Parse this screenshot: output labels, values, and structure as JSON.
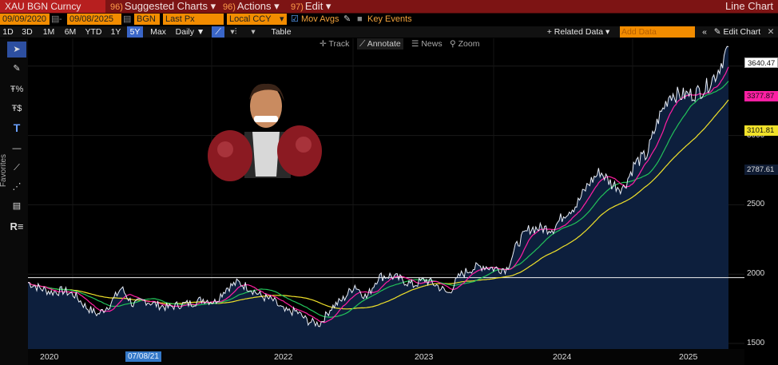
{
  "topbar": {
    "security": "XAU BGN Curncy",
    "menus": [
      {
        "num": "96)",
        "label": "Suggested Charts ▾"
      },
      {
        "num": "96)",
        "label": "Actions ▾"
      },
      {
        "num": "97)",
        "label": "Edit ▾"
      }
    ],
    "title": "Line Chart"
  },
  "params": {
    "start_date": "09/09/2020",
    "end_date": "09/08/2025",
    "source": "BGN",
    "field": "Last Px",
    "currency": "Local CCY",
    "mov_avgs": "Mov Avgs",
    "key_events": "Key Events"
  },
  "toolbar": {
    "ranges": [
      "1D",
      "3D",
      "1M",
      "6M",
      "YTD",
      "1Y",
      "5Y",
      "Max"
    ],
    "active_range": "5Y",
    "frequency": "Daily ▼",
    "table": "Table",
    "related": "+ Related Data ▾",
    "add_data_placeholder": "Add Data",
    "edit_chart": "✎ Edit Chart"
  },
  "annotations": {
    "track": "Track",
    "annotate": "Annotate",
    "news": "News",
    "zoom": "Zoom"
  },
  "sidebar": {
    "favorites": "Favorites"
  },
  "chart_data": {
    "type": "line",
    "x_axis_labels": [
      "2020",
      "2022",
      "2023",
      "2024",
      "2025"
    ],
    "highlight_label": "07/08/21",
    "y_ticks": [
      1500,
      2000,
      2500,
      3000,
      3500
    ],
    "ylim": [
      1460,
      3700
    ],
    "reference_line": 1975,
    "last_value": "3640.47",
    "ma_tags": [
      {
        "value": "3377.87",
        "color": "#ff1fa3"
      },
      {
        "value": "3101.81",
        "color": "#f0e12a"
      },
      {
        "value": "2787.61",
        "color": "#101c33"
      }
    ],
    "series_points": [
      [
        "2020-09",
        1940
      ],
      [
        "2020-10",
        1900
      ],
      [
        "2020-11",
        1870
      ],
      [
        "2020-12",
        1880
      ],
      [
        "2021-01",
        1850
      ],
      [
        "2021-02",
        1760
      ],
      [
        "2021-03",
        1710
      ],
      [
        "2021-04",
        1780
      ],
      [
        "2021-05",
        1900
      ],
      [
        "2021-06",
        1780
      ],
      [
        "2021-07",
        1810
      ],
      [
        "2021-08",
        1780
      ],
      [
        "2021-09",
        1760
      ],
      [
        "2021-10",
        1780
      ],
      [
        "2021-11",
        1790
      ],
      [
        "2021-12",
        1820
      ],
      [
        "2022-01",
        1800
      ],
      [
        "2022-02",
        1900
      ],
      [
        "2022-03",
        1940
      ],
      [
        "2022-04",
        1900
      ],
      [
        "2022-05",
        1840
      ],
      [
        "2022-06",
        1810
      ],
      [
        "2022-07",
        1730
      ],
      [
        "2022-08",
        1730
      ],
      [
        "2022-09",
        1660
      ],
      [
        "2022-10",
        1640
      ],
      [
        "2022-11",
        1760
      ],
      [
        "2022-12",
        1820
      ],
      [
        "2023-01",
        1920
      ],
      [
        "2023-02",
        1830
      ],
      [
        "2023-03",
        1980
      ],
      [
        "2023-04",
        1990
      ],
      [
        "2023-05",
        1960
      ],
      [
        "2023-06",
        1920
      ],
      [
        "2023-07",
        1960
      ],
      [
        "2023-08",
        1920
      ],
      [
        "2023-09",
        1860
      ],
      [
        "2023-10",
        1990
      ],
      [
        "2023-11",
        2040
      ],
      [
        "2023-12",
        2060
      ],
      [
        "2024-01",
        2040
      ],
      [
        "2024-02",
        2040
      ],
      [
        "2024-03",
        2230
      ],
      [
        "2024-04",
        2330
      ],
      [
        "2024-05",
        2330
      ],
      [
        "2024-06",
        2330
      ],
      [
        "2024-07",
        2440
      ],
      [
        "2024-08",
        2500
      ],
      [
        "2024-09",
        2650
      ],
      [
        "2024-10",
        2740
      ],
      [
        "2024-11",
        2650
      ],
      [
        "2024-12",
        2620
      ],
      [
        "2025-01",
        2800
      ],
      [
        "2025-02",
        2860
      ],
      [
        "2025-03",
        3120
      ],
      [
        "2025-04",
        3300
      ],
      [
        "2025-05",
        3290
      ],
      [
        "2025-06",
        3300
      ],
      [
        "2025-07",
        3340
      ],
      [
        "2025-08",
        3450
      ],
      [
        "2025-09",
        3640
      ]
    ]
  }
}
